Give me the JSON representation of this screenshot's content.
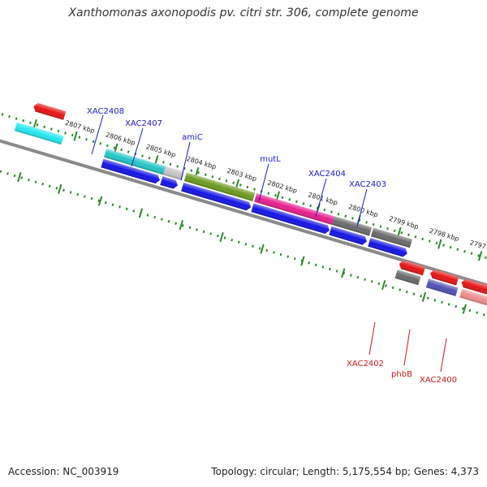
{
  "title": "Xanthomonas axonopodis pv. citri str. 306, complete genome",
  "footer": {
    "accession": "Accession: NC_003919",
    "summary": "Topology: circular; Length: 5,175,554 bp; Genes: 4,373"
  },
  "colors": {
    "backbone": "#8a8a8a",
    "tick": "#2a8a2a",
    "forward_label": "#1a1acc",
    "reverse_label": "#cc1a1a"
  },
  "scale": {
    "unit": "kbp",
    "ticks": [
      "2807 kbp",
      "2806 kbp",
      "2805 kbp",
      "2804 kbp",
      "2803 kbp",
      "2802 kbp",
      "2801 kbp",
      "2800 kbp",
      "2799 kbp",
      "2798 kbp",
      "2797 kbp"
    ]
  },
  "gene_labels": {
    "forward": [
      "XAC2408",
      "XAC2407",
      "amiC",
      "mutL",
      "XAC2404",
      "XAC2403"
    ],
    "reverse": [
      "XAC2402",
      "phbB",
      "XAC2400"
    ]
  }
}
